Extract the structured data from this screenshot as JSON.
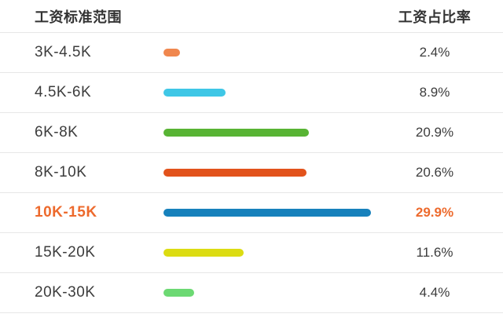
{
  "header": {
    "left": "工资标准范围",
    "right": "工资占比率"
  },
  "chart_data": {
    "type": "bar",
    "orientation": "horizontal",
    "title": "",
    "xlabel": "工资占比率",
    "ylabel": "工资标准范围",
    "categories": [
      "3K-4.5K",
      "4.5K-6K",
      "6K-8K",
      "8K-10K",
      "10K-15K",
      "15K-20K",
      "20K-30K"
    ],
    "values": [
      2.4,
      8.9,
      20.9,
      20.6,
      29.9,
      11.6,
      4.4
    ],
    "value_labels": [
      "2.4%",
      "8.9%",
      "20.9%",
      "20.6%",
      "29.9%",
      "11.6%",
      "4.4%"
    ],
    "bar_colors": [
      "#f0874e",
      "#3fc7e6",
      "#58b434",
      "#e2531c",
      "#1781bc",
      "#dcdc12",
      "#6cd973"
    ],
    "value_range": [
      0,
      30
    ],
    "highlighted_index": 4,
    "highlight_color": "#ed6a2d",
    "grid": "horizontal-row-dividers",
    "divider_color": "#e7e7e7"
  }
}
